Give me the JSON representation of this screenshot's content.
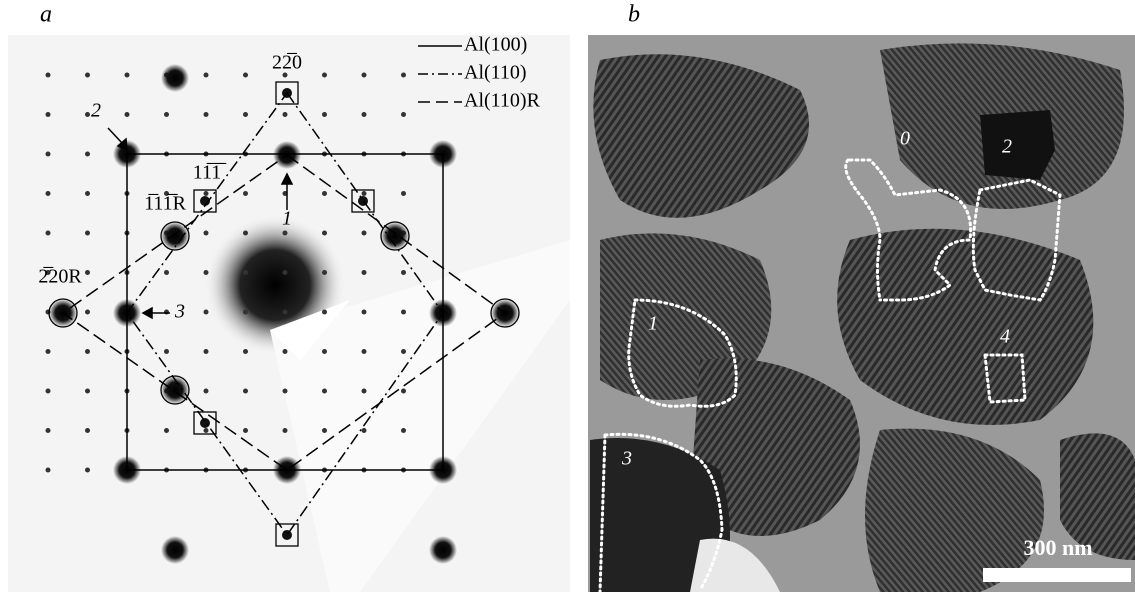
{
  "panel_a": {
    "label": "a",
    "legend": [
      "Al(100)",
      "Al(110)",
      "Al(110)R"
    ],
    "spot_labels": [
      "22̅0",
      "11̅1̅",
      "1̅11̅R",
      "2̅20R"
    ],
    "arrow_labels": [
      "1",
      "2",
      "3"
    ]
  },
  "panel_b": {
    "label": "b",
    "region_labels": [
      "0",
      "1",
      "2",
      "3",
      "4"
    ],
    "scale_bar": "300 nm"
  }
}
